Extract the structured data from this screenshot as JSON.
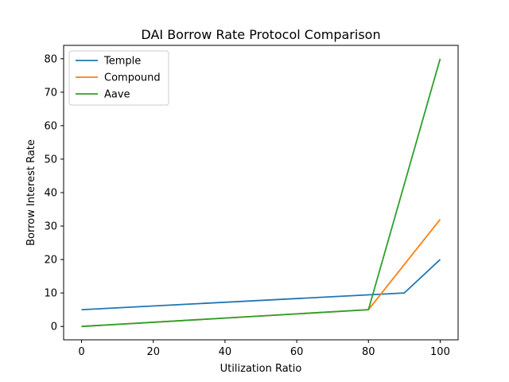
{
  "chart_data": {
    "type": "line",
    "title": "DAI Borrow Rate Protocol Comparison",
    "xlabel": "Utilization Ratio",
    "ylabel": "Borrow Interest Rate",
    "xlim": [
      -5,
      105
    ],
    "ylim": [
      -4,
      84
    ],
    "xticks": [
      0,
      20,
      40,
      60,
      80,
      100
    ],
    "yticks": [
      0,
      10,
      20,
      30,
      40,
      50,
      60,
      70,
      80
    ],
    "grid": false,
    "legend_position": "top-left",
    "series": [
      {
        "name": "Temple",
        "color": "#1f77b4",
        "x": [
          0,
          90,
          100
        ],
        "y": [
          5,
          10,
          20
        ]
      },
      {
        "name": "Compound",
        "color": "#ff7f0e",
        "x": [
          0,
          80,
          100
        ],
        "y": [
          0,
          5,
          32
        ]
      },
      {
        "name": "Aave",
        "color": "#2ca02c",
        "x": [
          0,
          80,
          100
        ],
        "y": [
          0,
          5,
          80
        ]
      }
    ]
  }
}
